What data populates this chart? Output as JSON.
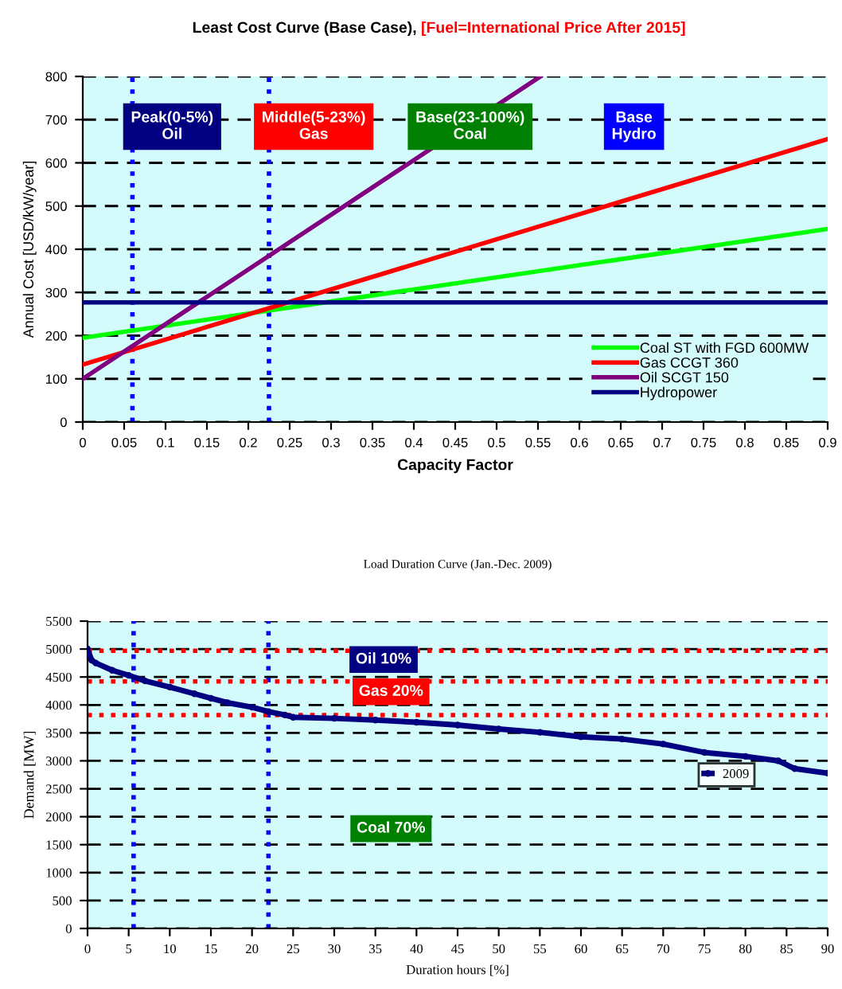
{
  "chart_data": [
    {
      "type": "line",
      "title": "Least Cost Curve (Base Case),",
      "subtitle": "[Fuel=International Price After 2015]",
      "xlabel": "Capacity Factor",
      "ylabel": "Annual Cost [USD/kW/year]",
      "xlim": [
        0,
        0.9
      ],
      "ylim": [
        0,
        800
      ],
      "xticks": [
        0,
        0.05,
        0.1,
        0.15,
        0.2,
        0.25,
        0.3,
        0.35,
        0.4,
        0.45,
        0.5,
        0.55,
        0.6,
        0.65,
        0.7,
        0.75,
        0.8,
        0.85,
        0.9
      ],
      "yticks": [
        0,
        100,
        200,
        300,
        400,
        500,
        600,
        700,
        800
      ],
      "grid": "y",
      "legend": "bottom right",
      "marker": "none",
      "line_style": "solid",
      "series": [
        {
          "name": "Coal ST with FGD 600MW",
          "color": "#00ff00",
          "x": [
            0,
            0.9
          ],
          "values": [
            195,
            447
          ]
        },
        {
          "name": "Gas CCGT 360",
          "color": "#ff0000",
          "x": [
            0,
            0.9
          ],
          "values": [
            133,
            655
          ]
        },
        {
          "name": "Oil SCGT 150",
          "color": "#800080",
          "x": [
            0,
            0.553
          ],
          "values": [
            100,
            800
          ]
        },
        {
          "name": "Hydropower",
          "color": "#000080",
          "x": [
            0,
            0.9
          ],
          "values": [
            277,
            277
          ]
        }
      ],
      "ref_lines": [
        {
          "axis": "x",
          "value": 0.06,
          "color": "#0000ff",
          "line_style": "dotted"
        },
        {
          "axis": "x",
          "value": 0.225,
          "color": "#0000ff",
          "line_style": "dotted"
        }
      ],
      "annotations": [
        "Peak(0-5%)\nOil",
        "Middle(5-23%)\nGas",
        "Base(23-100%)\nCoal",
        "Base\nHydro"
      ]
    },
    {
      "type": "line",
      "title": "Load Duration Curve (Jan.-Dec. 2009)",
      "xlabel": "Duration hours [%]",
      "ylabel": "Demand [MW]",
      "xlim": [
        0,
        90
      ],
      "ylim": [
        0,
        5500
      ],
      "xticks": [
        0,
        5,
        10,
        15,
        20,
        25,
        30,
        35,
        40,
        45,
        50,
        55,
        60,
        65,
        70,
        75,
        80,
        85,
        90
      ],
      "yticks": [
        0,
        500,
        1000,
        1500,
        2000,
        2500,
        3000,
        3500,
        4000,
        4500,
        5000,
        5500
      ],
      "grid": "y",
      "legend": "right",
      "marker": "circle",
      "line_style": "solid",
      "series": [
        {
          "name": "2009",
          "color": "#000080",
          "x": [
            0,
            0.5,
            1,
            3,
            5,
            7,
            10,
            13,
            15,
            17,
            20,
            22,
            24,
            25,
            30,
            35,
            40,
            45,
            50,
            55,
            60,
            65,
            70,
            75,
            80,
            84,
            86,
            90
          ],
          "values": [
            5000,
            4800,
            4750,
            4620,
            4530,
            4430,
            4320,
            4200,
            4120,
            4040,
            3960,
            3880,
            3820,
            3780,
            3760,
            3730,
            3690,
            3640,
            3570,
            3510,
            3430,
            3390,
            3300,
            3150,
            3080,
            3000,
            2860,
            2780
          ]
        }
      ],
      "ref_lines": [
        {
          "axis": "x",
          "value": 5.6,
          "color": "#0000ff",
          "line_style": "dotted"
        },
        {
          "axis": "x",
          "value": 22,
          "color": "#0000ff",
          "line_style": "dotted"
        },
        {
          "axis": "y",
          "value": 4970,
          "color": "#ff0000",
          "line_style": "dotted"
        },
        {
          "axis": "y",
          "value": 4420,
          "color": "#ff0000",
          "line_style": "dotted"
        },
        {
          "axis": "y",
          "value": 3820,
          "color": "#ff0000",
          "line_style": "dotted"
        }
      ],
      "annotations": [
        "Oil 10%",
        "Gas 20%",
        "Coal 70%"
      ]
    }
  ]
}
